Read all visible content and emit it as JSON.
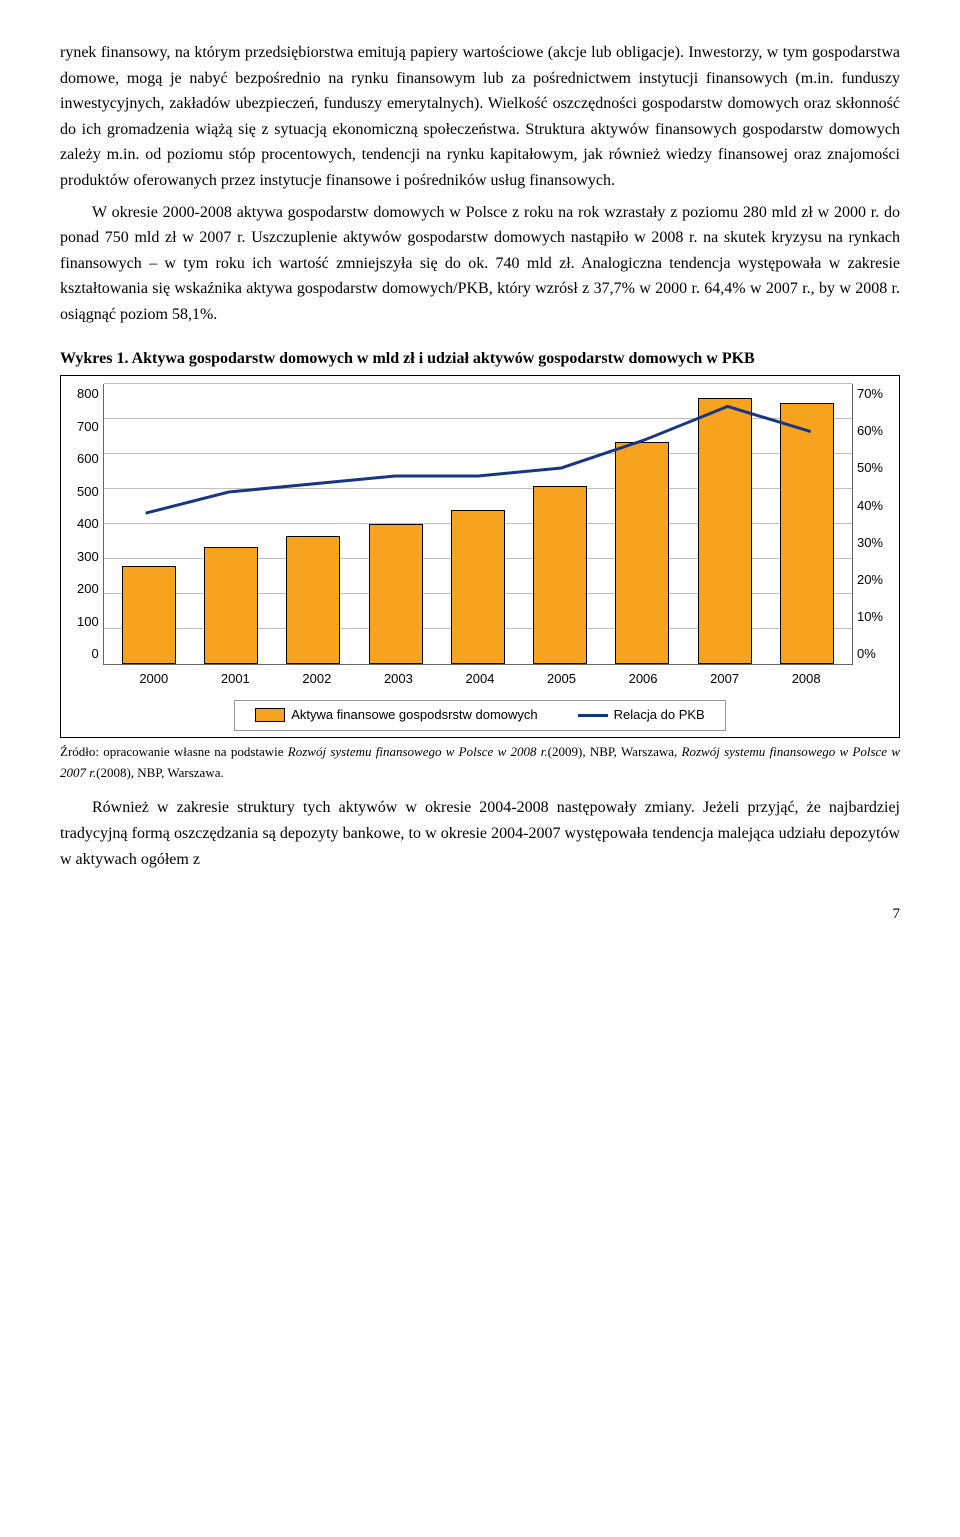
{
  "para1": "rynek finansowy, na którym przedsiębiorstwa emitują papiery wartościowe (akcje lub obligacje). Inwestorzy, w tym gospodarstwa domowe, mogą je nabyć bezpośrednio na rynku finansowym lub za pośrednictwem instytucji finansowych (m.in. funduszy inwestycyjnych, zakładów ubezpieczeń, funduszy emerytalnych). Wielkość oszczędności gospodarstw domowych oraz skłonność do ich gromadzenia wiążą się z sytuacją ekonomiczną społeczeństwa. Struktura aktywów finansowych gospodarstw domowych zależy m.in. od poziomu stóp procentowych, tendencji na rynku kapitałowym, jak również wiedzy finansowej oraz znajomości produktów oferowanych przez instytucje finansowe i pośredników usług finansowych.",
  "para2": "W okresie 2000-2008 aktywa gospodarstw domowych w Polsce z roku na rok wzrastały z poziomu 280 mld zł w 2000 r. do ponad 750 mld zł w 2007 r. Uszczuplenie aktywów gospodarstw domowych nastąpiło w 2008 r. na skutek kryzysu na rynkach finansowych – w tym roku ich wartość zmniejszyła się do ok. 740 mld zł. Analogiczna tendencja występowała w zakresie kształtowania się wskaźnika aktywa gospodarstw domowych/PKB, który wzrósł z 37,7% w 2000 r. 64,4% w 2007 r., by w 2008 r. osiągnąć poziom 58,1%.",
  "chartTitle": "Wykres 1. Aktywa gospodarstw domowych w mld zł i udział aktywów gospodarstw domowych w PKB",
  "chart": {
    "type": "bar-line",
    "background_color": "#ffffff",
    "grid_color": "#c0c0c0",
    "bar_color": "#f7a320",
    "bar_border": "#000000",
    "line_color": "#173582",
    "line_width": 3,
    "y_left": {
      "min": 0,
      "max": 800,
      "step": 100,
      "ticks": [
        "800",
        "700",
        "600",
        "500",
        "400",
        "300",
        "200",
        "100",
        "0"
      ]
    },
    "y_right": {
      "min": 0,
      "max": 70,
      "step": 10,
      "ticks": [
        "70%",
        "60%",
        "50%",
        "40%",
        "30%",
        "20%",
        "10%",
        "0%"
      ]
    },
    "categories": [
      "2000",
      "2001",
      "2002",
      "2003",
      "2004",
      "2005",
      "2006",
      "2007",
      "2008"
    ],
    "bar_values": [
      280,
      335,
      365,
      400,
      440,
      510,
      635,
      760,
      745
    ],
    "line_values_pct": [
      37.7,
      43,
      45,
      47,
      47,
      49,
      56,
      64.4,
      58.1
    ],
    "legend_bar": "Aktywa finansowe gospodsrstw domowych",
    "legend_line": "Relacja do PKB",
    "font_family": "Arial",
    "font_size": 13
  },
  "source_prefix": "Źródło: opracowanie własne na podstawie ",
  "source_italic1": "Rozwój systemu finansowego w Polsce w 2008 r.",
  "source_mid": "(2009), NBP, Warszawa, ",
  "source_italic2": "Rozwój systemu finansowego w Polsce w 2007 r.",
  "source_end": "(2008), NBP, Warszawa.",
  "para3": "Również w zakresie struktury tych aktywów w okresie 2004-2008 następowały zmiany. Jeżeli przyjąć, że najbardziej tradycyjną formą oszczędzania są depozyty bankowe, to w okresie 2004-2007 występowała tendencja malejąca udziału depozytów w aktywach ogółem z",
  "pageNumber": "7"
}
